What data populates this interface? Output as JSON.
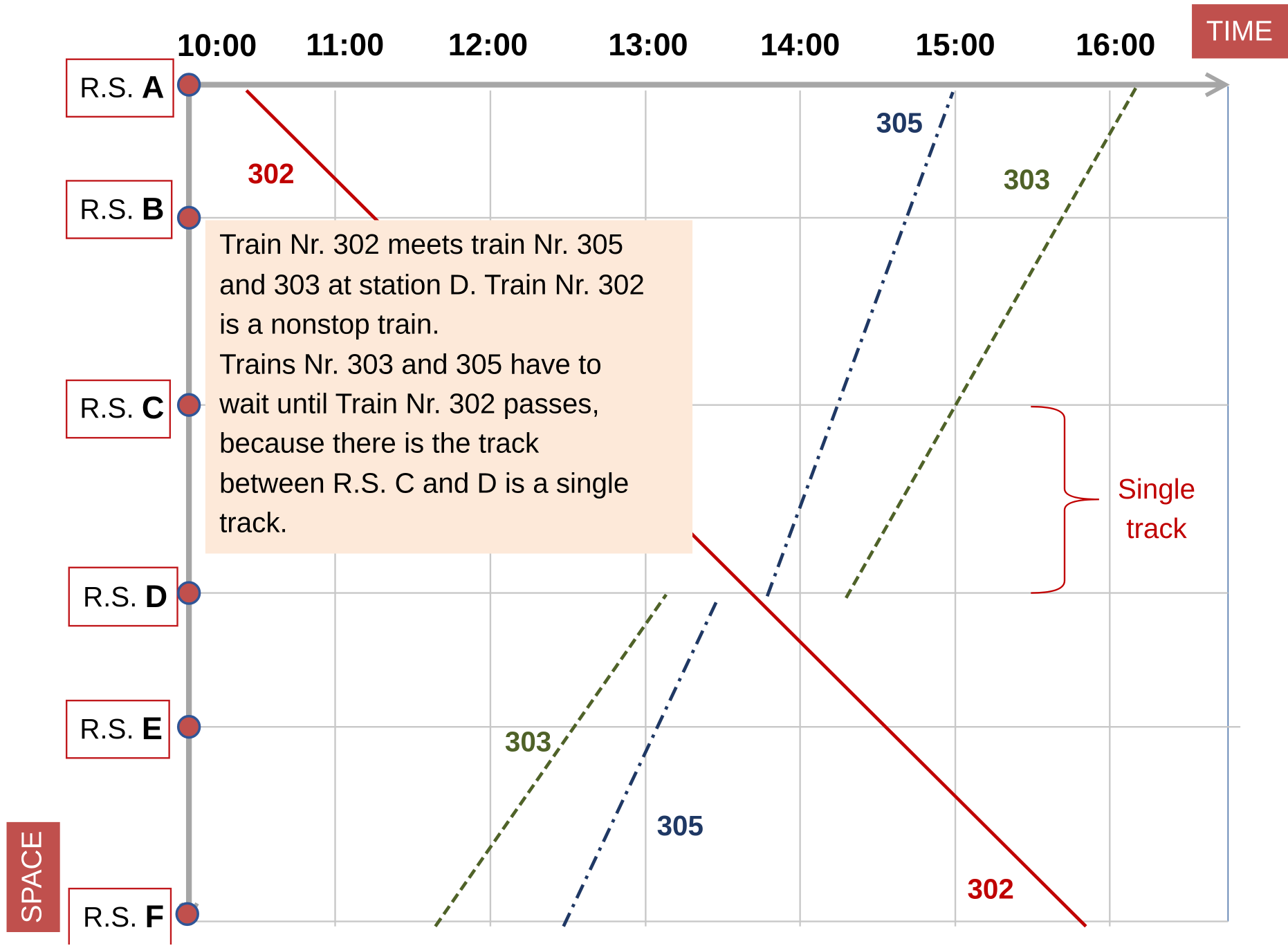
{
  "axis": {
    "time": "TIME",
    "space": "SPACE"
  },
  "times": [
    "10:00",
    "11:00",
    "12:00",
    "13:00",
    "14:00",
    "15:00",
    "16:00"
  ],
  "stations": [
    {
      "prefix": "R.S.",
      "letter": "A"
    },
    {
      "prefix": "R.S.",
      "letter": "B"
    },
    {
      "prefix": "R.S.",
      "letter": "C"
    },
    {
      "prefix": "R.S.",
      "letter": "D"
    },
    {
      "prefix": "R.S.",
      "letter": "E"
    },
    {
      "prefix": "R.S.",
      "letter": "F"
    }
  ],
  "train_labels": [
    "302",
    "305",
    "303",
    "303",
    "305",
    "302"
  ],
  "note": {
    "lines": [
      "Train Nr. 302 meets train Nr. 305",
      "and 303 at station D. Train Nr. 302",
      "is a nonstop train.",
      "Trains Nr. 303 and 305 have to",
      "wait until Train Nr. 302 passes,",
      "because there is the track",
      "between R.S. C and D is a single",
      "track."
    ]
  },
  "brace_label": [
    "Single",
    "track"
  ]
}
